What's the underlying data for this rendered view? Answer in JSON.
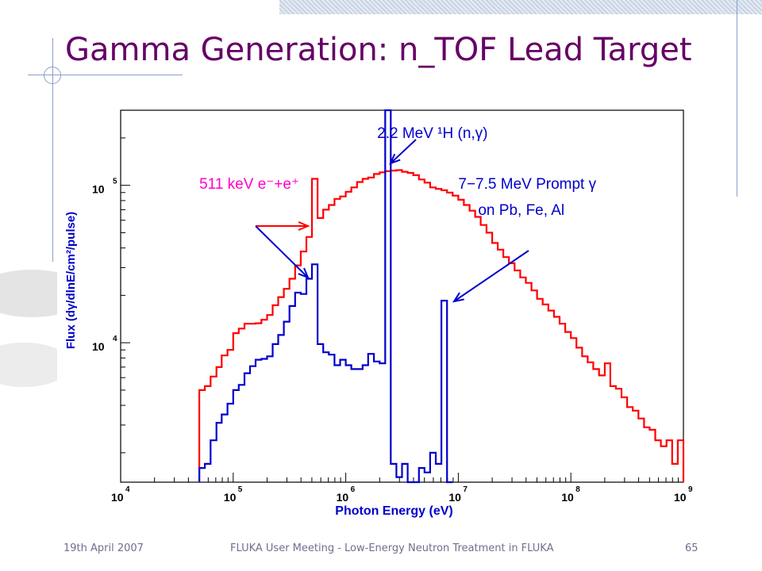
{
  "slide": {
    "title": "Gamma Generation: n_TOF Lead Target",
    "footer_date": "19th April 2007",
    "footer_center": "FLUKA User Meeting - Low-Energy Neutron Treatment in FLUKA",
    "page_number": "65"
  },
  "colors": {
    "title": "#660066",
    "series_red": "#ff0000",
    "series_blue": "#0000cc",
    "axis_labels": "#0000cc",
    "annotation_511": "#ff00cc",
    "annotation_text": "#0000cc"
  },
  "chart_data": {
    "type": "line",
    "step": true,
    "x_scale": "log",
    "y_scale": "log",
    "xlim": [
      10000,
      1000000000
    ],
    "ylim": [
      1300,
      300000
    ],
    "xlabel": "Photon Energy (eV)",
    "ylabel": "Flux (dγ/dlnE/cm²/pulse)",
    "x_tick_labels": [
      {
        "value": 10000,
        "base": "10",
        "exp": "4"
      },
      {
        "value": 100000,
        "base": "10",
        "exp": "5"
      },
      {
        "value": 1000000,
        "base": "10",
        "exp": "6"
      },
      {
        "value": 10000000,
        "base": "10",
        "exp": "7"
      },
      {
        "value": 100000000,
        "base": "10",
        "exp": "8"
      },
      {
        "value": 1000000000,
        "base": "10",
        "exp": "9"
      }
    ],
    "y_tick_labels": [
      {
        "value": 10000,
        "base": "10",
        "exp": "4"
      },
      {
        "value": 100000,
        "base": "10",
        "exp": "5"
      }
    ],
    "annotations": [
      {
        "id": "ann-511",
        "text": "511 keV e⁻+e⁺",
        "x": 50000,
        "y": 95000,
        "color": "annotation_511"
      },
      {
        "id": "ann-22",
        "text": "2.2 MeV ¹H (n,γ)",
        "x": 1900000,
        "y": 200000,
        "color": "annotation_text"
      },
      {
        "id": "ann-7a",
        "text": "7−7.5 MeV Prompt γ",
        "x": 10000000,
        "y": 95000,
        "color": "annotation_text"
      },
      {
        "id": "ann-7b",
        "text": "on Pb, Fe, Al",
        "x": 15000000,
        "y": 65000,
        "color": "annotation_text"
      }
    ],
    "series": [
      {
        "color": "series_red",
        "edges": [
          50000,
          56000,
          63000,
          71000,
          79000,
          89000,
          100000,
          112000,
          126000,
          141000,
          158000,
          178000,
          200000,
          224000,
          251000,
          282000,
          316000,
          355000,
          398000,
          447000,
          501000,
          562000,
          631000,
          708000,
          794000,
          891000,
          1000000,
          1120000,
          1260000,
          1410000,
          1580000,
          1780000,
          2000000,
          2240000,
          2510000,
          2820000,
          3160000,
          3550000,
          3980000,
          4470000,
          5010000,
          5620000,
          6310000,
          7080000,
          7940000,
          8910000,
          10000000,
          11200000,
          12600000,
          14100000,
          15800000,
          17800000,
          20000000,
          22400000,
          25100000,
          28200000,
          31600000,
          35500000,
          39800000,
          44700000,
          50100000,
          56200000,
          63100000,
          70800000,
          79400000,
          89100000,
          100000000,
          112000000,
          126000000,
          141000000,
          158000000,
          178000000,
          200000000,
          224000000,
          251000000,
          282000000,
          316000000,
          355000000,
          398000000,
          447000000,
          501000000,
          562000000,
          631000000,
          708000000,
          794000000,
          891000000,
          1000000000
        ],
        "values": [
          5000,
          5300,
          6100,
          7000,
          8300,
          9000,
          11500,
          12300,
          13200,
          13200,
          13300,
          14000,
          15000,
          17300,
          19500,
          22000,
          25500,
          31000,
          38000,
          47000,
          110000,
          62000,
          70000,
          75000,
          82000,
          85000,
          91000,
          97000,
          105000,
          110000,
          112000,
          118000,
          121000,
          123000,
          124000,
          125000,
          122000,
          120000,
          116000,
          109000,
          104000,
          97000,
          95000,
          93000,
          90000,
          86000,
          81000,
          75000,
          69000,
          63000,
          56000,
          50000,
          43000,
          39000,
          35000,
          32000,
          28800,
          26000,
          24000,
          21500,
          19000,
          17500,
          16000,
          14600,
          13200,
          11700,
          10700,
          9300,
          8200,
          7500,
          6800,
          6200,
          7400,
          5300,
          5100,
          4500,
          3900,
          3700,
          3300,
          2900,
          2800,
          2400,
          2200,
          2400,
          1700,
          2400
        ]
      },
      {
        "color": "series_blue",
        "edges": [
          50000,
          56000,
          63000,
          71000,
          79000,
          89000,
          100000,
          112000,
          126000,
          141000,
          158000,
          178000,
          200000,
          224000,
          251000,
          282000,
          316000,
          355000,
          398000,
          447000,
          501000,
          562000,
          631000,
          708000,
          794000,
          891000,
          1000000,
          1120000,
          1260000,
          1410000,
          1580000,
          1780000,
          2000000,
          2240000,
          2510000,
          2820000,
          3160000,
          3550000,
          3980000,
          4470000,
          5010000,
          5620000,
          6310000,
          7080000,
          7940000,
          8910000
        ],
        "values": [
          1600,
          1700,
          2400,
          3100,
          3500,
          4100,
          5000,
          5400,
          6400,
          7100,
          7800,
          7900,
          8200,
          9800,
          11200,
          13600,
          17100,
          20800,
          20400,
          25500,
          31500,
          9800,
          8700,
          8400,
          7200,
          7800,
          7200,
          6800,
          6800,
          7200,
          8500,
          7600,
          7400,
          350000,
          1700,
          1400,
          1700,
          1300,
          1300,
          1600,
          1500,
          2000,
          1700,
          18500,
          1300
        ]
      }
    ]
  }
}
